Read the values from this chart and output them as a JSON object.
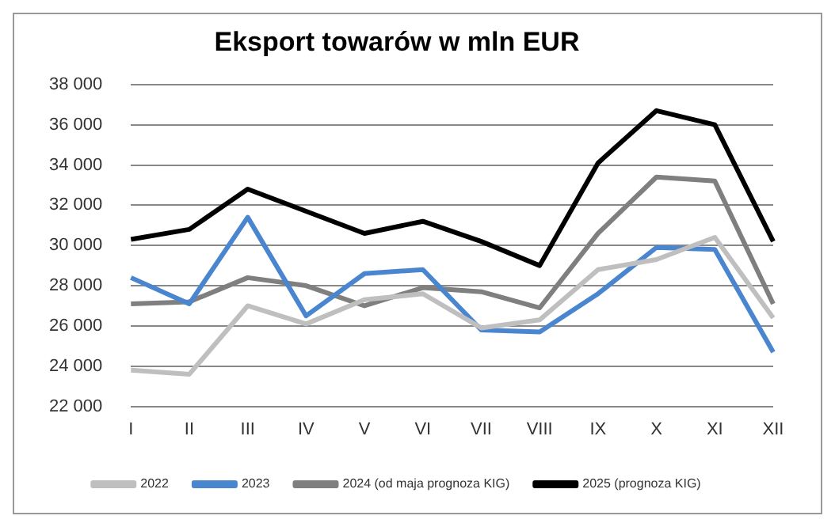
{
  "chart_data": {
    "type": "line",
    "title": "Eksport towarów w mln EUR",
    "categories": [
      "I",
      "II",
      "III",
      "IV",
      "V",
      "VI",
      "VII",
      "VIII",
      "IX",
      "X",
      "XI",
      "XII"
    ],
    "series": [
      {
        "name": "2022",
        "color": "#bfbfbf",
        "values": [
          23800,
          23600,
          27000,
          26100,
          27300,
          27600,
          25900,
          26300,
          28800,
          29300,
          30400,
          26400
        ]
      },
      {
        "name": "2023",
        "color": "#4a86d0",
        "values": [
          28400,
          27100,
          31400,
          26500,
          28600,
          28800,
          25800,
          25700,
          27600,
          29900,
          29800,
          24700
        ]
      },
      {
        "name": "2024 (od maja prognoza KIG)",
        "color": "#7f7f7f",
        "values": [
          27100,
          27200,
          28400,
          28000,
          27000,
          27900,
          27700,
          26900,
          30600,
          33400,
          33200,
          27100
        ]
      },
      {
        "name": "2025 (prognoza KIG)",
        "color": "#000000",
        "values": [
          30300,
          30800,
          32800,
          31700,
          30600,
          31200,
          30200,
          29000,
          34100,
          36700,
          36000,
          30200
        ]
      }
    ],
    "ylim": [
      22000,
      38000
    ],
    "yticks": [
      {
        "value": 22000,
        "label": "22 000"
      },
      {
        "value": 24000,
        "label": "24 000"
      },
      {
        "value": 26000,
        "label": "26 000"
      },
      {
        "value": 28000,
        "label": "28 000"
      },
      {
        "value": 30000,
        "label": "30 000"
      },
      {
        "value": 32000,
        "label": "32 000"
      },
      {
        "value": 34000,
        "label": "34 000"
      },
      {
        "value": 36000,
        "label": "36 000"
      },
      {
        "value": 38000,
        "label": "38 000"
      }
    ],
    "grid": "y",
    "legend": "bottom",
    "marker": "none",
    "line_style": "solid"
  }
}
